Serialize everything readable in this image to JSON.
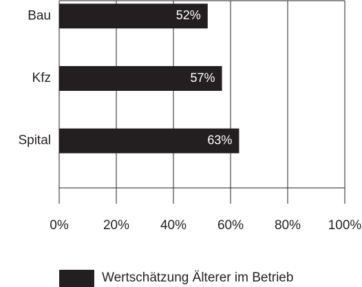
{
  "chart_data": {
    "type": "bar",
    "orientation": "horizontal",
    "categories": [
      "Bau",
      "Kfz",
      "Spital"
    ],
    "series": [
      {
        "name": "Wertschätzung Älterer im Betrieb",
        "color": "#231f20",
        "values": [
          52,
          57,
          63
        ],
        "value_labels": [
          "52%",
          "57%",
          "63%"
        ]
      }
    ],
    "xlim": [
      0,
      100
    ],
    "xticks": [
      {
        "value": 0,
        "label": "0%"
      },
      {
        "value": 20,
        "label": "20%"
      },
      {
        "value": 40,
        "label": "40%"
      },
      {
        "value": 60,
        "label": "60%"
      },
      {
        "value": 80,
        "label": "80%"
      },
      {
        "value": 100,
        "label": "100%"
      }
    ],
    "grid": true,
    "legend": "bottom"
  }
}
